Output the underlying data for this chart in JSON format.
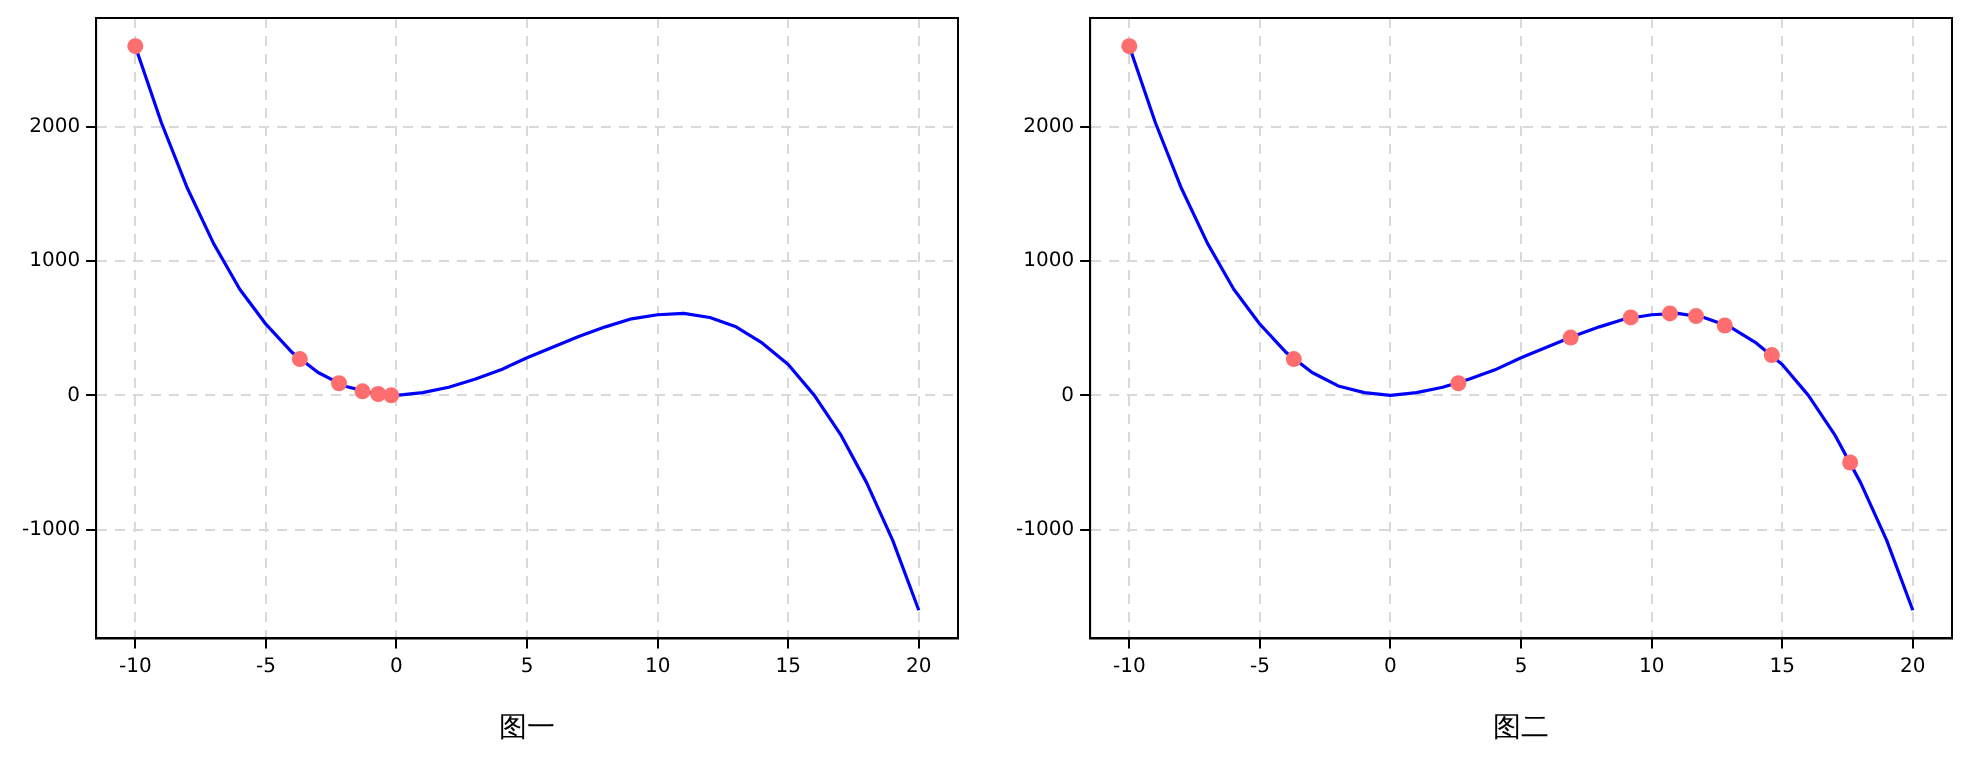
{
  "chart_data": [
    {
      "type": "line",
      "xlabel": "图一",
      "xlim": [
        -11.5,
        21.5
      ],
      "ylim": [
        -1810,
        2810
      ],
      "xticks": [
        -10,
        -5,
        0,
        5,
        10,
        15,
        20
      ],
      "yticks": [
        -1000,
        0,
        1000,
        2000
      ],
      "grid": true,
      "series": [
        {
          "type": "line",
          "color": "#0000ff",
          "marker": "none",
          "x": [
            -10,
            -9,
            -8,
            -7,
            -6,
            -5,
            -4,
            -3,
            -2,
            -1,
            0,
            1,
            2,
            3,
            4,
            5,
            6,
            7,
            8,
            9,
            10,
            11,
            12,
            13,
            14,
            15,
            16,
            17,
            18,
            19,
            20
          ],
          "values": [
            2600,
            2030,
            1540,
            1130,
            790,
            530,
            320,
            170,
            70,
            20,
            0,
            20,
            60,
            120,
            190,
            280,
            360,
            440,
            510,
            570,
            600,
            610,
            580,
            510,
            390,
            230,
            0,
            -290,
            -650,
            -1080,
            -1600
          ]
        },
        {
          "type": "scatter",
          "color": "#ff6e6e",
          "marker": "circle",
          "x": [
            -10,
            -3.7,
            -2.2,
            -1.3,
            -0.7,
            -0.2
          ],
          "values": [
            2600,
            270,
            90,
            30,
            10,
            0
          ]
        }
      ]
    },
    {
      "type": "line",
      "xlabel": "图二",
      "xlim": [
        -11.5,
        21.5
      ],
      "ylim": [
        -1810,
        2810
      ],
      "xticks": [
        -10,
        -5,
        0,
        5,
        10,
        15,
        20
      ],
      "yticks": [
        -1000,
        0,
        1000,
        2000
      ],
      "grid": true,
      "series": [
        {
          "type": "line",
          "color": "#0000ff",
          "marker": "none",
          "x": [
            -10,
            -9,
            -8,
            -7,
            -6,
            -5,
            -4,
            -3,
            -2,
            -1,
            0,
            1,
            2,
            3,
            4,
            5,
            6,
            7,
            8,
            9,
            10,
            11,
            12,
            13,
            14,
            15,
            16,
            17,
            18,
            19,
            20
          ],
          "values": [
            2600,
            2030,
            1540,
            1130,
            790,
            530,
            320,
            170,
            70,
            20,
            0,
            20,
            60,
            120,
            190,
            280,
            360,
            440,
            510,
            570,
            600,
            610,
            580,
            510,
            390,
            230,
            0,
            -290,
            -650,
            -1080,
            -1600
          ]
        },
        {
          "type": "scatter",
          "color": "#ff6e6e",
          "marker": "circle",
          "x": [
            -10,
            -3.7,
            2.6,
            6.9,
            9.2,
            10.7,
            11.7,
            12.8,
            14.6,
            17.6
          ],
          "values": [
            2600,
            270,
            90,
            430,
            580,
            610,
            590,
            520,
            300,
            -500
          ]
        }
      ]
    }
  ]
}
